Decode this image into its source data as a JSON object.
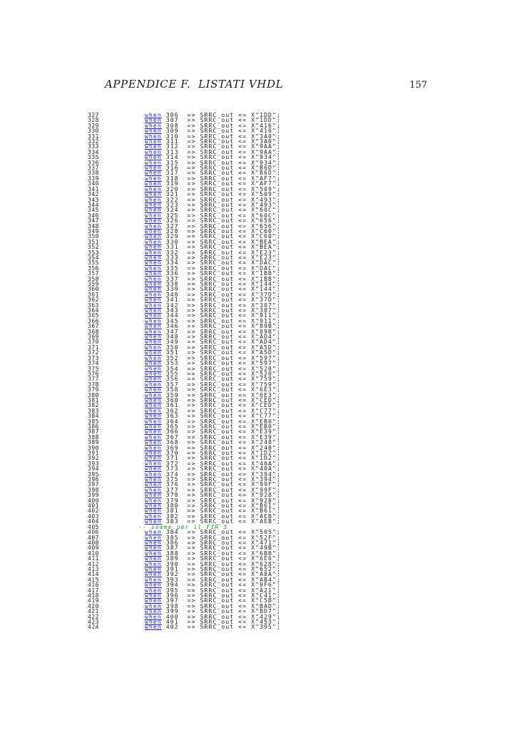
{
  "header": {
    "title": "APPENDICE F.  LISTATI VHDL",
    "page_number": "157"
  },
  "colors": {
    "keyword_blue": "#2323cc",
    "comment_green": "#2e8b2e",
    "text": "#1f1f1f",
    "background": "#ffffff"
  },
  "code": {
    "keyword": "when",
    "arrow": "=>",
    "signal": "SRRC_out",
    "assign_op": "<=",
    "rows": [
      {
        "ln": 327,
        "case": 306,
        "hex": "1DD"
      },
      {
        "ln": 328,
        "case": 307,
        "hex": "1DD"
      },
      {
        "ln": 329,
        "case": 308,
        "hex": "416"
      },
      {
        "ln": 330,
        "case": 309,
        "hex": "416"
      },
      {
        "ln": 331,
        "case": 310,
        "hex": "3A0"
      },
      {
        "ln": 332,
        "case": 311,
        "hex": "3A0"
      },
      {
        "ln": 333,
        "case": 312,
        "hex": "9AA"
      },
      {
        "ln": 334,
        "case": 313,
        "hex": "9AA"
      },
      {
        "ln": 335,
        "case": 314,
        "hex": "934"
      },
      {
        "ln": 336,
        "case": 315,
        "hex": "934"
      },
      {
        "ln": 337,
        "case": 316,
        "hex": "B6D"
      },
      {
        "ln": 338,
        "case": 317,
        "hex": "B6D"
      },
      {
        "ln": 339,
        "case": 318,
        "hex": "AF7"
      },
      {
        "ln": 340,
        "case": 319,
        "hex": "AF7"
      },
      {
        "ln": 341,
        "case": 320,
        "hex": "509"
      },
      {
        "ln": 342,
        "case": 321,
        "hex": "509"
      },
      {
        "ln": 343,
        "case": 322,
        "hex": "493"
      },
      {
        "ln": 344,
        "case": 323,
        "hex": "493"
      },
      {
        "ln": 345,
        "case": 324,
        "hex": "60C"
      },
      {
        "ln": 346,
        "case": 325,
        "hex": "60C"
      },
      {
        "ln": 347,
        "case": 326,
        "hex": "656"
      },
      {
        "ln": 348,
        "case": 327,
        "hex": "656"
      },
      {
        "ln": 349,
        "case": 328,
        "hex": "C60"
      },
      {
        "ln": 350,
        "case": 329,
        "hex": "C60"
      },
      {
        "ln": 351,
        "case": 330,
        "hex": "BEA"
      },
      {
        "ln": 352,
        "case": 331,
        "hex": "BEA"
      },
      {
        "ln": 353,
        "case": 332,
        "hex": "E23"
      },
      {
        "ln": 354,
        "case": 333,
        "hex": "E23"
      },
      {
        "ln": 355,
        "case": 334,
        "hex": "DAC"
      },
      {
        "ln": 356,
        "case": 335,
        "hex": "DAC"
      },
      {
        "ln": 357,
        "case": 336,
        "hex": "1BB"
      },
      {
        "ln": 358,
        "case": 337,
        "hex": "1BB"
      },
      {
        "ln": 359,
        "case": 338,
        "hex": "144"
      },
      {
        "ln": 360,
        "case": 339,
        "hex": "144"
      },
      {
        "ln": 361,
        "case": 340,
        "hex": "37D"
      },
      {
        "ln": 362,
        "case": 341,
        "hex": "37D"
      },
      {
        "ln": 363,
        "case": 342,
        "hex": "307"
      },
      {
        "ln": 364,
        "case": 343,
        "hex": "307"
      },
      {
        "ln": 365,
        "case": 344,
        "hex": "911"
      },
      {
        "ln": 366,
        "case": 345,
        "hex": "911"
      },
      {
        "ln": 367,
        "case": 346,
        "hex": "89B"
      },
      {
        "ln": 368,
        "case": 347,
        "hex": "89B"
      },
      {
        "ln": 369,
        "case": 348,
        "hex": "AD4"
      },
      {
        "ln": 370,
        "case": 349,
        "hex": "AD4"
      },
      {
        "ln": 371,
        "case": 350,
        "hex": "A5D"
      },
      {
        "ln": 372,
        "case": 351,
        "hex": "A5D"
      },
      {
        "ln": 373,
        "case": 352,
        "hex": "597"
      },
      {
        "ln": 374,
        "case": 353,
        "hex": "597"
      },
      {
        "ln": 375,
        "case": 354,
        "hex": "520"
      },
      {
        "ln": 376,
        "case": 355,
        "hex": "520"
      },
      {
        "ln": 377,
        "case": 356,
        "hex": "759"
      },
      {
        "ln": 378,
        "case": 357,
        "hex": "759"
      },
      {
        "ln": 379,
        "case": 358,
        "hex": "6E3"
      },
      {
        "ln": 380,
        "case": 359,
        "hex": "6E3"
      },
      {
        "ln": 381,
        "case": 360,
        "hex": "CED"
      },
      {
        "ln": 382,
        "case": 361,
        "hex": "CED"
      },
      {
        "ln": 383,
        "case": 362,
        "hex": "C77"
      },
      {
        "ln": 384,
        "case": 363,
        "hex": "C77"
      },
      {
        "ln": 385,
        "case": 364,
        "hex": "EB0"
      },
      {
        "ln": 386,
        "case": 365,
        "hex": "EB0"
      },
      {
        "ln": 387,
        "case": 366,
        "hex": "E39"
      },
      {
        "ln": 388,
        "case": 367,
        "hex": "E39"
      },
      {
        "ln": 389,
        "case": 368,
        "hex": "248"
      },
      {
        "ln": 390,
        "case": 369,
        "hex": "248"
      },
      {
        "ln": 391,
        "case": 370,
        "hex": "1D2"
      },
      {
        "ln": 392,
        "case": 371,
        "hex": "1D2"
      },
      {
        "ln": 393,
        "case": 372,
        "hex": "40A"
      },
      {
        "ln": 394,
        "case": 373,
        "hex": "40A"
      },
      {
        "ln": 395,
        "case": 374,
        "hex": "394"
      },
      {
        "ln": 396,
        "case": 375,
        "hex": "394"
      },
      {
        "ln": 397,
        "case": 376,
        "hex": "99F"
      },
      {
        "ln": 398,
        "case": 377,
        "hex": "99F"
      },
      {
        "ln": 399,
        "case": 378,
        "hex": "928"
      },
      {
        "ln": 400,
        "case": 379,
        "hex": "928"
      },
      {
        "ln": 401,
        "case": 380,
        "hex": "B61"
      },
      {
        "ln": 402,
        "case": 381,
        "hex": "B61"
      },
      {
        "ln": 403,
        "case": 382,
        "hex": "AEB"
      },
      {
        "ln": 404,
        "case": 383,
        "hex": "AEB"
      },
      {
        "ln": 405,
        "comment": "-- somme per il FIR 3"
      },
      {
        "ln": 406,
        "case": 384,
        "hex": "505"
      },
      {
        "ln": 407,
        "case": 385,
        "hex": "52F"
      },
      {
        "ln": 408,
        "case": 386,
        "hex": "471"
      },
      {
        "ln": 409,
        "case": 387,
        "hex": "49B"
      },
      {
        "ln": 410,
        "case": 388,
        "hex": "6BB"
      },
      {
        "ln": 411,
        "case": 389,
        "hex": "6E6"
      },
      {
        "ln": 412,
        "case": 390,
        "hex": "628"
      },
      {
        "ln": 413,
        "case": 391,
        "hex": "652"
      },
      {
        "ln": 414,
        "case": 392,
        "hex": "A8A"
      },
      {
        "ln": 415,
        "case": 393,
        "hex": "AB4"
      },
      {
        "ln": 416,
        "case": 394,
        "hex": "9F6"
      },
      {
        "ln": 417,
        "case": 395,
        "hex": "A21"
      },
      {
        "ln": 418,
        "case": 396,
        "hex": "C41"
      },
      {
        "ln": 419,
        "case": 397,
        "hex": "C5B"
      },
      {
        "ln": 420,
        "case": 398,
        "hex": "BAD"
      },
      {
        "ln": 421,
        "case": 399,
        "hex": "BD7"
      },
      {
        "ln": 422,
        "case": 400,
        "hex": "429"
      },
      {
        "ln": 423,
        "case": 401,
        "hex": "453"
      },
      {
        "ln": 424,
        "case": 402,
        "hex": "395"
      }
    ]
  }
}
